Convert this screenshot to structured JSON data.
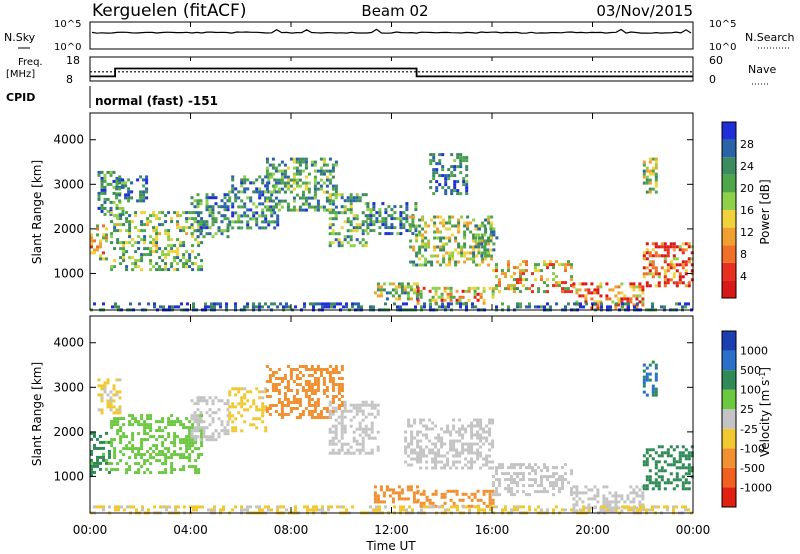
{
  "header": {
    "station": "Kerguelen (fitACF)",
    "beam": "Beam 02",
    "date": "03/Nov/2015"
  },
  "status_panels": {
    "nsky_label": "N.Sky",
    "nsky_ticks": [
      "10^5",
      "10^0"
    ],
    "nsearch_label": "N.Search",
    "nsearch_ticks": [
      "10^5",
      "10^0"
    ],
    "freq_label": "Freq.",
    "freq_unit": "[MHz]",
    "freq_ticks": [
      "18",
      "8"
    ],
    "nave_label": "Nave",
    "nave_ticks": [
      "60",
      "0"
    ],
    "cpid_label": "CPID",
    "cpid_text": "normal (fast) -151",
    "freq_steps": [
      {
        "t": 0.0,
        "mhz": 9.9
      },
      {
        "t": 1.0,
        "mhz": 13.2
      },
      {
        "t": 13.0,
        "mhz": 9.9
      },
      {
        "t": 24.0,
        "mhz": 9.9
      }
    ],
    "nave_level": 13
  },
  "chart_data": [
    {
      "type": "heatmap",
      "title": "",
      "xlabel": "",
      "ylabel": "Slant Range [km]",
      "xlim": [
        0,
        24
      ],
      "ylim": [
        180,
        4600
      ],
      "yticks": [
        "4000",
        "3000",
        "2000",
        "1000"
      ],
      "colorbar_label": "Power [dB]",
      "colorbar_ticks": [
        "28",
        "24",
        "20",
        "16",
        "12",
        "8",
        "4"
      ],
      "colorbar_range": [
        0,
        32
      ],
      "colors": [
        "#1f2fd8",
        "#2a63a8",
        "#3d8a5f",
        "#4fa64a",
        "#8ed04a",
        "#f0d23a",
        "#f0a030",
        "#f07028",
        "#e83020",
        "#d81818"
      ],
      "echo_regions": [
        {
          "t0": 0.0,
          "t1": 0.7,
          "r0": 1300,
          "r1": 2100,
          "v": 18
        },
        {
          "t0": 0.3,
          "t1": 1.3,
          "r0": 2300,
          "r1": 3300,
          "v": 8
        },
        {
          "t0": 0.8,
          "t1": 4.5,
          "r0": 1100,
          "r1": 2400,
          "v": 12
        },
        {
          "t0": 1.0,
          "t1": 2.2,
          "r0": 2600,
          "r1": 3200,
          "v": 7
        },
        {
          "t0": 4.0,
          "t1": 5.5,
          "r0": 1800,
          "r1": 2800,
          "v": 9
        },
        {
          "t0": 5.5,
          "t1": 7.5,
          "r0": 2000,
          "r1": 3200,
          "v": 8
        },
        {
          "t0": 7.0,
          "t1": 9.8,
          "r0": 2400,
          "r1": 3600,
          "v": 10
        },
        {
          "t0": 9.5,
          "t1": 11.0,
          "r0": 1600,
          "r1": 2800,
          "v": 11
        },
        {
          "t0": 11.0,
          "t1": 13.0,
          "r0": 1900,
          "r1": 2600,
          "v": 8
        },
        {
          "t0": 11.3,
          "t1": 13.0,
          "r0": 400,
          "r1": 800,
          "v": 14
        },
        {
          "t0": 13.0,
          "t1": 16.0,
          "r0": 300,
          "r1": 700,
          "v": 20
        },
        {
          "t0": 12.7,
          "t1": 16.0,
          "r0": 1200,
          "r1": 2300,
          "v": 14
        },
        {
          "t0": 13.5,
          "t1": 15.0,
          "r0": 2800,
          "r1": 3700,
          "v": 7
        },
        {
          "t0": 15.3,
          "t1": 16.2,
          "r0": 1400,
          "r1": 2100,
          "v": 12
        },
        {
          "t0": 16.0,
          "t1": 19.2,
          "r0": 600,
          "r1": 1300,
          "v": 19
        },
        {
          "t0": 19.2,
          "t1": 22.0,
          "r0": 200,
          "r1": 800,
          "v": 24
        },
        {
          "t0": 22.0,
          "t1": 24.0,
          "r0": 700,
          "r1": 1700,
          "v": 26
        },
        {
          "t0": 22.0,
          "t1": 22.5,
          "r0": 2800,
          "r1": 3600,
          "v": 14
        },
        {
          "t0": 0.0,
          "t1": 24.0,
          "r0": 200,
          "r1": 350,
          "v": 5
        }
      ]
    },
    {
      "type": "heatmap",
      "title": "",
      "xlabel": "Time UT",
      "ylabel": "Slant Range [km]",
      "xlim": [
        0,
        24
      ],
      "xticks": [
        "00:00",
        "04:00",
        "08:00",
        "12:00",
        "16:00",
        "20:00",
        "00:00"
      ],
      "ylim": [
        180,
        4600
      ],
      "yticks": [
        "4000",
        "3000",
        "2000",
        "1000"
      ],
      "colorbar_label": "Velocity [m s^-1]",
      "colorbar_ticks": [
        "1000",
        "500",
        "100",
        "25",
        "-25",
        "-100",
        "-500",
        "-1000"
      ],
      "colors": [
        "#1c3fb0",
        "#2a70c8",
        "#2f8a55",
        "#6cc840",
        "#c4c4c4",
        "#f0c830",
        "#f09030",
        "#f06020",
        "#e02010"
      ],
      "echo_regions": [
        {
          "t0": 0.0,
          "t1": 0.8,
          "r0": 1000,
          "r1": 2000,
          "v": 120
        },
        {
          "t0": 0.3,
          "t1": 1.2,
          "r0": 2400,
          "r1": 3200,
          "v": -30
        },
        {
          "t0": 0.8,
          "t1": 4.5,
          "r0": 1100,
          "r1": 2400,
          "v": 60
        },
        {
          "t0": 4.0,
          "t1": 5.5,
          "r0": 1800,
          "r1": 2800,
          "v": 10
        },
        {
          "t0": 5.5,
          "t1": 7.0,
          "r0": 2000,
          "r1": 3000,
          "v": -40
        },
        {
          "t0": 7.0,
          "t1": 10.0,
          "r0": 2300,
          "r1": 3500,
          "v": -200
        },
        {
          "t0": 9.5,
          "t1": 11.5,
          "r0": 1500,
          "r1": 2700,
          "v": -10
        },
        {
          "t0": 11.3,
          "t1": 13.0,
          "r0": 400,
          "r1": 800,
          "v": -250
        },
        {
          "t0": 13.0,
          "t1": 16.0,
          "r0": 300,
          "r1": 700,
          "v": -180
        },
        {
          "t0": 12.5,
          "t1": 16.0,
          "r0": 1200,
          "r1": 2300,
          "v": 5
        },
        {
          "t0": 16.0,
          "t1": 19.2,
          "r0": 600,
          "r1": 1300,
          "v": 0
        },
        {
          "t0": 19.2,
          "t1": 22.0,
          "r0": 200,
          "r1": 800,
          "v": -10
        },
        {
          "t0": 22.0,
          "t1": 24.0,
          "r0": 700,
          "r1": 1700,
          "v": 200
        },
        {
          "t0": 22.0,
          "t1": 22.5,
          "r0": 2800,
          "r1": 3600,
          "v": 600
        },
        {
          "t0": 0.0,
          "t1": 24.0,
          "r0": 200,
          "r1": 350,
          "v": -30
        }
      ]
    }
  ]
}
